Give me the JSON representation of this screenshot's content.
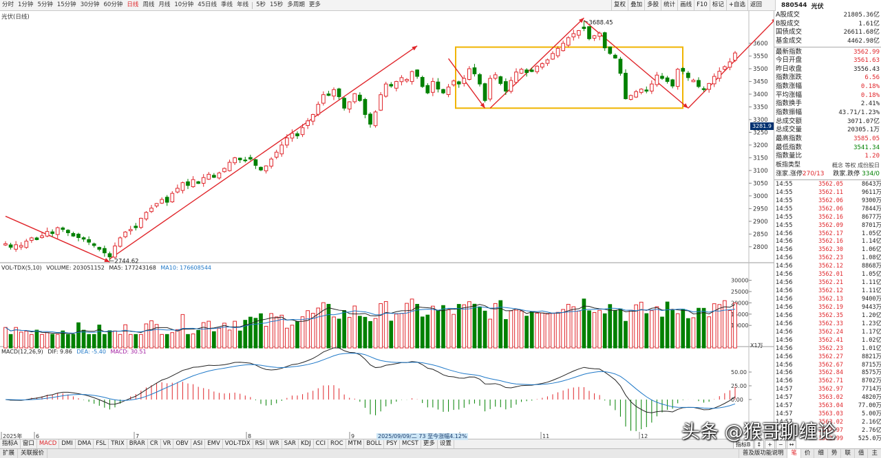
{
  "periods": [
    {
      "label": "分时",
      "active": false
    },
    {
      "label": "1分钟",
      "active": false
    },
    {
      "label": "5分钟",
      "active": false
    },
    {
      "label": "15分钟",
      "active": false
    },
    {
      "label": "30分钟",
      "active": false
    },
    {
      "label": "60分钟",
      "active": false
    },
    {
      "label": "日线",
      "active": true
    },
    {
      "label": "周线",
      "active": false
    },
    {
      "label": "月线",
      "active": false
    },
    {
      "label": "10分钟",
      "active": false
    },
    {
      "label": "45日线",
      "active": false
    },
    {
      "label": "季线",
      "active": false
    },
    {
      "label": "年线",
      "active": false
    },
    {
      "label": "5秒",
      "active": false
    },
    {
      "label": "15秒",
      "active": false
    },
    {
      "label": "多周期",
      "active": false
    },
    {
      "label": "更多",
      "active": false
    }
  ],
  "tools": [
    "复权",
    "叠加",
    "多股",
    "统计",
    "画线",
    "F10",
    "标记",
    "+自选",
    "返回"
  ],
  "quote_header": {
    "code": "880544",
    "name": "光伏"
  },
  "chart_title": "光伏(日线)",
  "vol_title": {
    "name": "VOL-TDX(5,10)",
    "volume": "VOLUME: 203051152",
    "ma5": "MA5: 177243168",
    "ma10": "MA10: 176608544"
  },
  "macd_title": {
    "name": "MACD(12,26,9)",
    "dif": "DIF: 9.86",
    "dea": "DEA: -5.40",
    "macd": "MACD: 30.51"
  },
  "quotes": [
    {
      "k": "A股成交",
      "v": "21805.36亿",
      "c": "blk"
    },
    {
      "k": "B股成交",
      "v": "1.61亿",
      "c": "blk"
    },
    {
      "k": "国债成交",
      "v": "26611.68亿",
      "c": "blk"
    },
    {
      "k": "基金成交",
      "v": "4462.98亿",
      "c": "blk"
    },
    {
      "sep": true
    },
    {
      "k": "最新指数",
      "v": "3562.99",
      "c": "red"
    },
    {
      "k": "今日开盘",
      "v": "3561.63",
      "c": "red"
    },
    {
      "k": "昨日收盘",
      "v": "3556.43",
      "c": "blk"
    },
    {
      "k": "指数涨跌",
      "v": "6.56",
      "c": "red"
    },
    {
      "k": "指数涨幅",
      "v": "0.18%",
      "c": "red"
    },
    {
      "k": "平均涨幅",
      "v": "0.18%",
      "c": "red"
    },
    {
      "k": "指数换手",
      "v": "2.41%",
      "c": "blk"
    },
    {
      "k": "指数振幅",
      "v": "43.71/1.23%",
      "c": "blk"
    },
    {
      "k": "总成交额",
      "v": "3071.07亿",
      "c": "blk"
    },
    {
      "k": "总成交量",
      "v": "20305.1万",
      "c": "blk"
    },
    {
      "k": "最高指数",
      "v": "3585.05",
      "c": "red"
    },
    {
      "k": "最低指数",
      "v": "3541.34",
      "c": "green"
    },
    {
      "k": "指数量比",
      "v": "1.20",
      "c": "red"
    }
  ],
  "board_type": {
    "label": "板指类型",
    "right": "概念 等权 成份股日"
  },
  "updown": {
    "label": "涨家.涨停",
    "up": "270/13",
    "label2": "跌家.跌停",
    "down": "334/0"
  },
  "ticks": [
    [
      "14:55",
      "3562.05",
      "8643万"
    ],
    [
      "14:55",
      "3562.11",
      "9611万"
    ],
    [
      "14:55",
      "3562.06",
      "9300万"
    ],
    [
      "14:55",
      "3562.06",
      "7844万"
    ],
    [
      "14:55",
      "3562.16",
      "8677万"
    ],
    [
      "14:55",
      "3562.09",
      "8701万"
    ],
    [
      "14:56",
      "3562.17",
      "1.05亿"
    ],
    [
      "14:56",
      "3562.16",
      "1.14亿"
    ],
    [
      "14:56",
      "3562.30",
      "1.06亿"
    ],
    [
      "14:56",
      "3562.23",
      "1.08亿"
    ],
    [
      "14:56",
      "3562.12",
      "8868万"
    ],
    [
      "14:56",
      "3562.01",
      "1.05亿"
    ],
    [
      "14:56",
      "3562.21",
      "1.11亿"
    ],
    [
      "14:56",
      "3562.12",
      "1.11亿"
    ],
    [
      "14:56",
      "3562.13",
      "9400万"
    ],
    [
      "14:56",
      "3562.19",
      "9443万"
    ],
    [
      "14:56",
      "3562.35",
      "1.20亿"
    ],
    [
      "14:56",
      "3562.33",
      "1.23亿"
    ],
    [
      "14:56",
      "3562.24",
      "1.17亿"
    ],
    [
      "14:56",
      "3562.41",
      "1.02亿"
    ],
    [
      "14:56",
      "3562.23",
      "1.01亿"
    ],
    [
      "14:56",
      "3562.27",
      "8821万"
    ],
    [
      "14:56",
      "3562.67",
      "8715万"
    ],
    [
      "14:56",
      "3562.84",
      "8575万"
    ],
    [
      "14:56",
      "3562.71",
      "8702万"
    ],
    [
      "14:57",
      "3562.97",
      "7714万"
    ],
    [
      "14:57",
      "3563.02",
      "4820万"
    ],
    [
      "14:57",
      "3563.04",
      "77.00万"
    ],
    [
      "14:57",
      "3563.03",
      "5.00万"
    ],
    [
      "14:57",
      "3563.02",
      "2.16亿"
    ],
    [
      "14:57",
      "3562.97",
      "2.76亿"
    ],
    [
      "15:00",
      "3562.99",
      "525.0万"
    ]
  ],
  "bottom_indicators": [
    {
      "label": "指标A",
      "active": false
    },
    {
      "label": "窗口",
      "active": false
    },
    {
      "label": "MACD",
      "active": true
    },
    {
      "label": "DMI",
      "active": false
    },
    {
      "label": "DMA",
      "active": false
    },
    {
      "label": "FSL",
      "active": false
    },
    {
      "label": "TRIX",
      "active": false
    },
    {
      "label": "BRAR",
      "active": false
    },
    {
      "label": "CR",
      "active": false
    },
    {
      "label": "VR",
      "active": false
    },
    {
      "label": "OBV",
      "active": false
    },
    {
      "label": "ASI",
      "active": false
    },
    {
      "label": "EMV",
      "active": false
    },
    {
      "label": "VOL-TDX",
      "active": false
    },
    {
      "label": "RSI",
      "active": false
    },
    {
      "label": "WR",
      "active": false
    },
    {
      "label": "SAR",
      "active": false
    },
    {
      "label": "KDJ",
      "active": false
    },
    {
      "label": "CCI",
      "active": false
    },
    {
      "label": "ROC",
      "active": false
    },
    {
      "label": "MTM",
      "active": false
    },
    {
      "label": "BOLL",
      "active": false
    },
    {
      "label": "PSY",
      "active": false
    },
    {
      "label": "MCST",
      "active": false
    },
    {
      "label": "更多",
      "active": false
    },
    {
      "label": "设置",
      "active": false
    }
  ],
  "bottom2": [
    "扩展",
    "关联报价"
  ],
  "bottom_right_tabs": [
    {
      "label": "普及版功能说明",
      "active": false
    },
    {
      "label": "笔",
      "active": true
    },
    {
      "label": "价",
      "active": false
    },
    {
      "label": "细",
      "active": false
    },
    {
      "label": "势",
      "active": false
    },
    {
      "label": "联",
      "active": false
    },
    {
      "label": "值",
      "active": false
    },
    {
      "label": "主",
      "active": false
    }
  ],
  "zoom": [
    "指标B",
    "↕",
    "+",
    "−",
    "↔"
  ],
  "date_tip": "2025/09/09/二 73 至今涨幅4.12%",
  "cursor_price": "3281.9",
  "vol_unit": "X1万",
  "watermark": "头条 @猴哥聊缠论",
  "chart_data": {
    "type": "candlestick",
    "title": "光伏(日线)",
    "x_labels": [
      "2025年",
      "6",
      "7",
      "8",
      "9",
      "10",
      "11",
      "12"
    ],
    "price_axis": {
      "ticks": [
        2800,
        2850,
        2900,
        2950,
        3000,
        3050,
        3100,
        3150,
        3200,
        3250,
        3300,
        3350,
        3400,
        3450,
        3500,
        3550,
        3600
      ],
      "range": [
        2740,
        3700
      ]
    },
    "annotations": [
      {
        "text": "2744.62",
        "value": 2744.62
      },
      {
        "text": "3688.45",
        "value": 3688.45
      }
    ],
    "box": {
      "low": 3345,
      "high": 3585
    },
    "closes": [
      2812,
      2798,
      2808,
      2805,
      2822,
      2835,
      2828,
      2843,
      2860,
      2852,
      2875,
      2868,
      2855,
      2842,
      2836,
      2830,
      2818,
      2805,
      2790,
      2776,
      2760,
      2803,
      2835,
      2858,
      2868,
      2875,
      2912,
      2935,
      2952,
      2970,
      2986,
      2975,
      3010,
      3030,
      3052,
      3041,
      3064,
      3049,
      3072,
      3085,
      3073,
      3090,
      3108,
      3132,
      3150,
      3142,
      3138,
      3145,
      3120,
      3102,
      3118,
      3145,
      3172,
      3200,
      3228,
      3246,
      3236,
      3268,
      3295,
      3320,
      3360,
      3398,
      3395,
      3418,
      3390,
      3345,
      3370,
      3402,
      3375,
      3320,
      3282,
      3330,
      3398,
      3440,
      3432,
      3450,
      3465,
      3458,
      3489,
      3470,
      3430,
      3405,
      3450,
      3420,
      3405,
      3428,
      3452,
      3440,
      3462,
      3500,
      3480,
      3440,
      3375,
      3462,
      3476,
      3442,
      3412,
      3454,
      3487,
      3498,
      3485,
      3489,
      3510,
      3520,
      3535,
      3560,
      3580,
      3600,
      3622,
      3638,
      3650,
      3658,
      3618,
      3630,
      3640,
      3582,
      3560,
      3542,
      3482,
      3382,
      3395,
      3410,
      3420,
      3412,
      3440,
      3475,
      3462,
      3450,
      3432,
      3498,
      3490,
      3465,
      3455,
      3430,
      3418,
      3442,
      3470,
      3490,
      3508,
      3527,
      3562
    ],
    "volume": {
      "axis_ticks": [
        10000,
        15000,
        20000,
        25000,
        30000
      ],
      "unit": "X1万"
    },
    "macd": {
      "axis_ticks": [
        0,
        25,
        50
      ]
    },
    "chart_colors": {
      "up": "#e0262b",
      "down": "#008000",
      "ma5": "#222222",
      "ma10": "#1e78c8",
      "dea": "#1e78c8",
      "trend": "#e0262b",
      "box": "#f0b400"
    }
  }
}
